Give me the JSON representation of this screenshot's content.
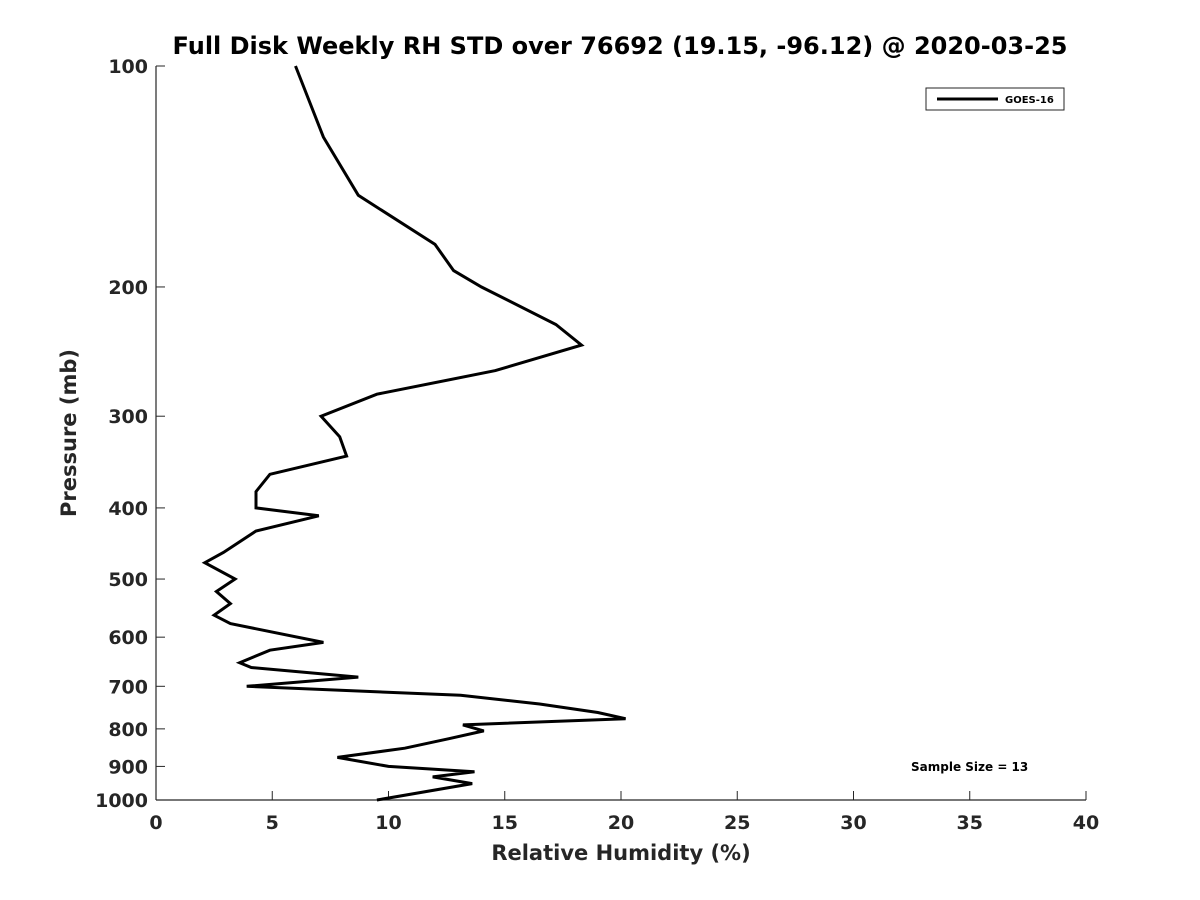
{
  "chart_data": {
    "type": "line",
    "title": "Full Disk Weekly RH STD over 76692 (19.15, -96.12) @ 2020-03-25",
    "xlabel": "Relative Humidity (%)",
    "ylabel": "Pressure (mb)",
    "xlim": [
      0,
      40
    ],
    "ylim": [
      100,
      1000
    ],
    "yscale": "log",
    "y_reversed": true,
    "xticks": [
      0,
      5,
      10,
      15,
      20,
      25,
      30,
      35,
      40
    ],
    "yticks": [
      100,
      200,
      300,
      400,
      500,
      600,
      700,
      800,
      900,
      1000
    ],
    "grid": false,
    "legend_position": "top-right",
    "series": [
      {
        "name": "GOES-16",
        "color": "#000000",
        "points": [
          [
            6.0,
            100
          ],
          [
            7.2,
            125
          ],
          [
            8.7,
            150
          ],
          [
            12.0,
            175
          ],
          [
            12.8,
            190
          ],
          [
            14.0,
            200
          ],
          [
            17.2,
            225
          ],
          [
            18.3,
            240
          ],
          [
            14.6,
            260
          ],
          [
            9.5,
            280
          ],
          [
            7.1,
            300
          ],
          [
            7.9,
            320
          ],
          [
            8.2,
            340
          ],
          [
            4.9,
            360
          ],
          [
            4.3,
            380
          ],
          [
            4.3,
            400
          ],
          [
            7.0,
            410
          ],
          [
            4.3,
            430
          ],
          [
            2.9,
            460
          ],
          [
            2.1,
            475
          ],
          [
            3.4,
            500
          ],
          [
            2.6,
            520
          ],
          [
            3.2,
            540
          ],
          [
            2.5,
            560
          ],
          [
            3.2,
            575
          ],
          [
            7.2,
            610
          ],
          [
            4.9,
            625
          ],
          [
            3.6,
            650
          ],
          [
            4.1,
            660
          ],
          [
            8.7,
            680
          ],
          [
            3.9,
            700
          ],
          [
            13.1,
            720
          ],
          [
            16.5,
            740
          ],
          [
            19.0,
            760
          ],
          [
            20.2,
            775
          ],
          [
            13.2,
            790
          ],
          [
            14.1,
            805
          ],
          [
            12.6,
            825
          ],
          [
            10.7,
            850
          ],
          [
            7.8,
            875
          ],
          [
            10.0,
            900
          ],
          [
            13.7,
            915
          ],
          [
            11.9,
            930
          ],
          [
            13.6,
            950
          ],
          [
            9.5,
            1000
          ]
        ]
      }
    ],
    "annotation": "Sample Size = 13"
  }
}
